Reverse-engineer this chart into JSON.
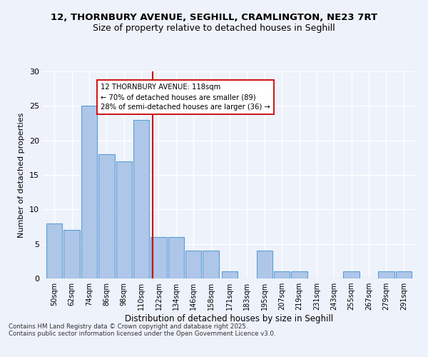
{
  "title_line1": "12, THORNBURY AVENUE, SEGHILL, CRAMLINGTON, NE23 7RT",
  "title_line2": "Size of property relative to detached houses in Seghill",
  "xlabel": "Distribution of detached houses by size in Seghill",
  "ylabel": "Number of detached properties",
  "bins": [
    50,
    62,
    74,
    86,
    98,
    110,
    122,
    134,
    146,
    158,
    171,
    183,
    195,
    207,
    219,
    231,
    243,
    255,
    267,
    279,
    291
  ],
  "values": [
    8,
    7,
    25,
    18,
    17,
    23,
    6,
    6,
    4,
    4,
    1,
    0,
    4,
    1,
    1,
    0,
    0,
    1,
    0,
    1,
    1
  ],
  "bar_color": "#aec6e8",
  "bar_edge_color": "#5a9fd4",
  "reference_line_x": 118,
  "reference_line_color": "#cc0000",
  "annotation_title": "12 THORNBURY AVENUE: 118sqm",
  "annotation_line1": "← 70% of detached houses are smaller (89)",
  "annotation_line2": "28% of semi-detached houses are larger (36) →",
  "annotation_box_color": "#ffffff",
  "annotation_box_edge_color": "#cc0000",
  "background_color": "#eef2fb",
  "grid_color": "#ffffff",
  "ylim": [
    0,
    30
  ],
  "yticks": [
    0,
    5,
    10,
    15,
    20,
    25,
    30
  ],
  "footnote_line1": "Contains HM Land Registry data © Crown copyright and database right 2025.",
  "footnote_line2": "Contains public sector information licensed under the Open Government Licence v3.0."
}
